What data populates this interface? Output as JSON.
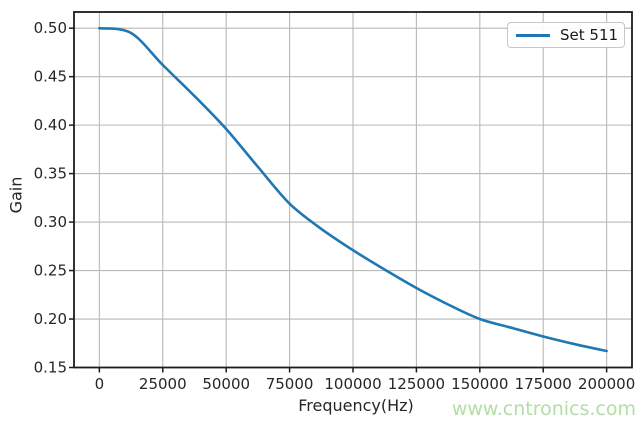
{
  "watermark": {
    "text": "www.cntronics.com",
    "color": "#b2dda6"
  },
  "chart_data": {
    "type": "line",
    "title": "",
    "xlabel": "Frequency(Hz)",
    "ylabel": "Gain",
    "xlim": [
      -10000,
      210000
    ],
    "ylim": [
      0.15,
      0.5167
    ],
    "grid": true,
    "grid_color": "#b8b8b8",
    "spine_color": "#1c1c1c",
    "text_color": "#262626",
    "x_ticks": {
      "values": [
        0,
        25000,
        50000,
        75000,
        100000,
        125000,
        150000,
        175000,
        200000
      ],
      "labels": [
        "0",
        "25000",
        "50000",
        "75000",
        "100000",
        "125000",
        "150000",
        "175000",
        "200000"
      ]
    },
    "y_ticks": {
      "values": [
        0.15,
        0.2,
        0.25,
        0.3,
        0.35,
        0.4,
        0.45,
        0.5
      ],
      "labels": [
        "0.15",
        "0.20",
        "0.25",
        "0.30",
        "0.35",
        "0.40",
        "0.45",
        "0.50"
      ]
    },
    "legend": {
      "position": "upper right",
      "entries": [
        {
          "label": "Set 511",
          "color": "#1f77b4"
        }
      ]
    },
    "series": [
      {
        "name": "Set 511",
        "color": "#1f77b4",
        "x": [
          0,
          12500,
          25000,
          37500,
          50000,
          62500,
          75000,
          87500,
          100000,
          112500,
          125000,
          137500,
          150000,
          162500,
          175000,
          187500,
          200000
        ],
        "y": [
          0.5,
          0.495,
          0.462,
          0.43,
          0.396,
          0.357,
          0.319,
          0.293,
          0.271,
          0.251,
          0.232,
          0.215,
          0.2,
          0.191,
          0.182,
          0.174,
          0.167
        ]
      }
    ]
  }
}
